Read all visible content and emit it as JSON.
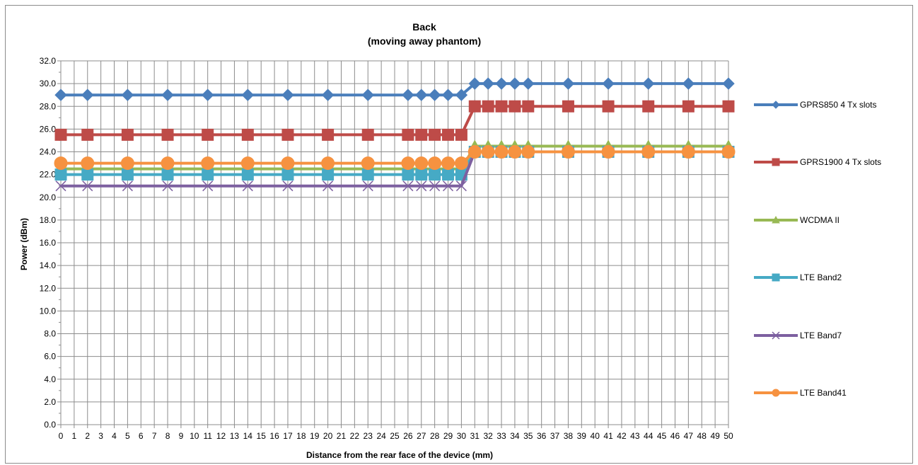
{
  "chart_data": {
    "type": "line",
    "title": "Back",
    "subtitle": "(moving away phantom)",
    "xlabel": "Distance from the rear face of the device (mm)",
    "ylabel": "Power (dBm)",
    "ylim": [
      0,
      32
    ],
    "y_ticks": [
      "0.0",
      "2.0",
      "4.0",
      "6.0",
      "8.0",
      "10.0",
      "12.0",
      "14.0",
      "16.0",
      "18.0",
      "20.0",
      "22.0",
      "24.0",
      "26.0",
      "28.0",
      "30.0",
      "32.0"
    ],
    "categories": [
      "0",
      "1",
      "2",
      "3",
      "4",
      "5",
      "6",
      "7",
      "8",
      "9",
      "10",
      "11",
      "12",
      "13",
      "14",
      "15",
      "16",
      "17",
      "18",
      "19",
      "20",
      "21",
      "22",
      "23",
      "24",
      "25",
      "26",
      "27",
      "28",
      "29",
      "30",
      "31",
      "32",
      "33",
      "34",
      "35",
      "36",
      "37",
      "38",
      "39",
      "40",
      "41",
      "42",
      "43",
      "44",
      "45",
      "46",
      "47",
      "48",
      "49",
      "50"
    ],
    "grid": true,
    "legend_position": "right",
    "series": [
      {
        "name": "GPRS850 4 Tx slots",
        "color": "#4a7ebb",
        "marker": "diamond",
        "x": [
          0,
          2,
          5,
          8,
          11,
          14,
          17,
          20,
          23,
          26,
          27,
          28,
          29,
          30,
          31,
          32,
          33,
          34,
          35,
          38,
          41,
          44,
          47,
          50
        ],
        "values": [
          29,
          29,
          29,
          29,
          29,
          29,
          29,
          29,
          29,
          29,
          29,
          29,
          29,
          29,
          30,
          30,
          30,
          30,
          30,
          30,
          30,
          30,
          30,
          30
        ]
      },
      {
        "name": "GPRS1900 4 Tx slots",
        "color": "#be4b48",
        "marker": "square",
        "x": [
          0,
          2,
          5,
          8,
          11,
          14,
          17,
          20,
          23,
          26,
          27,
          28,
          29,
          30,
          31,
          32,
          33,
          34,
          35,
          38,
          41,
          44,
          47,
          50
        ],
        "values": [
          25.5,
          25.5,
          25.5,
          25.5,
          25.5,
          25.5,
          25.5,
          25.5,
          25.5,
          25.5,
          25.5,
          25.5,
          25.5,
          25.5,
          28,
          28,
          28,
          28,
          28,
          28,
          28,
          28,
          28,
          28
        ]
      },
      {
        "name": "WCDMA II",
        "color": "#98b954",
        "marker": "triangle",
        "x": [
          0,
          2,
          5,
          8,
          11,
          14,
          17,
          20,
          23,
          26,
          27,
          28,
          29,
          30,
          31,
          32,
          33,
          34,
          35,
          38,
          41,
          44,
          47,
          50
        ],
        "values": [
          22.5,
          22.5,
          22.5,
          22.5,
          22.5,
          22.5,
          22.5,
          22.5,
          22.5,
          22.5,
          22.5,
          22.5,
          22.5,
          22.5,
          24.5,
          24.5,
          24.5,
          24.5,
          24.5,
          24.5,
          24.5,
          24.5,
          24.5,
          24.5
        ]
      },
      {
        "name": "LTE Band2",
        "color": "#46aac5",
        "marker": "square",
        "x": [
          0,
          2,
          5,
          8,
          11,
          14,
          17,
          20,
          23,
          26,
          27,
          28,
          29,
          30,
          31,
          32,
          33,
          34,
          35,
          38,
          41,
          44,
          47,
          50
        ],
        "values": [
          22,
          22,
          22,
          22,
          22,
          22,
          22,
          22,
          22,
          22,
          22,
          22,
          22,
          22,
          24,
          24,
          24,
          24,
          24,
          24,
          24,
          24,
          24,
          24
        ]
      },
      {
        "name": "LTE Band7",
        "color": "#7d60a0",
        "marker": "x",
        "x": [
          0,
          2,
          5,
          8,
          11,
          14,
          17,
          20,
          23,
          26,
          27,
          28,
          29,
          30,
          31,
          32,
          33,
          34,
          35,
          38,
          41,
          44,
          47,
          50
        ],
        "values": [
          21,
          21,
          21,
          21,
          21,
          21,
          21,
          21,
          21,
          21,
          21,
          21,
          21,
          21,
          24,
          24,
          24,
          24,
          24,
          24,
          24,
          24,
          24,
          24
        ]
      },
      {
        "name": "LTE Band41",
        "color": "#f69240",
        "marker": "circle",
        "x": [
          0,
          2,
          5,
          8,
          11,
          14,
          17,
          20,
          23,
          26,
          27,
          28,
          29,
          30,
          31,
          32,
          33,
          34,
          35,
          38,
          41,
          44,
          47,
          50
        ],
        "values": [
          23,
          23,
          23,
          23,
          23,
          23,
          23,
          23,
          23,
          23,
          23,
          23,
          23,
          23,
          24,
          24,
          24,
          24,
          24,
          24,
          24,
          24,
          24,
          24
        ]
      }
    ]
  }
}
